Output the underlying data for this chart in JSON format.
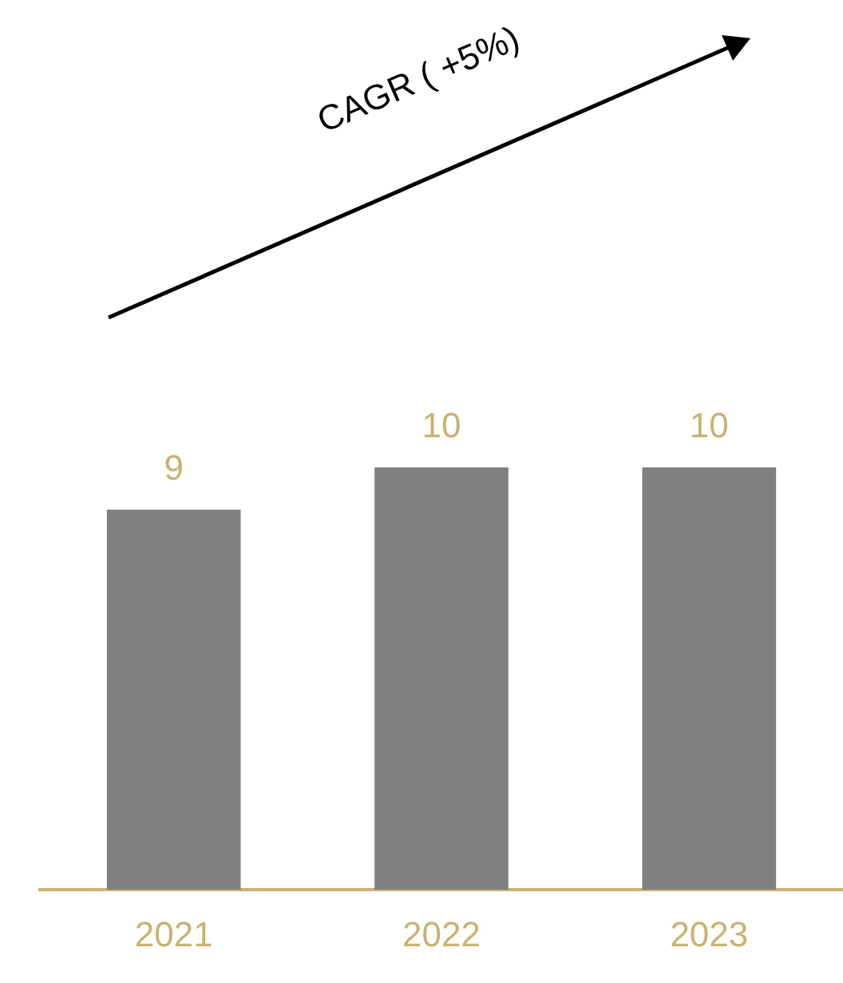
{
  "chart_data": {
    "type": "bar",
    "categories": [
      "2021",
      "2022",
      "2023"
    ],
    "values": [
      9,
      10,
      10
    ],
    "color": "#808080",
    "data_labels": true,
    "annotations": [
      "CAGR ( +5%)"
    ],
    "grid": false,
    "legend": false,
    "tick_labels": "x"
  }
}
